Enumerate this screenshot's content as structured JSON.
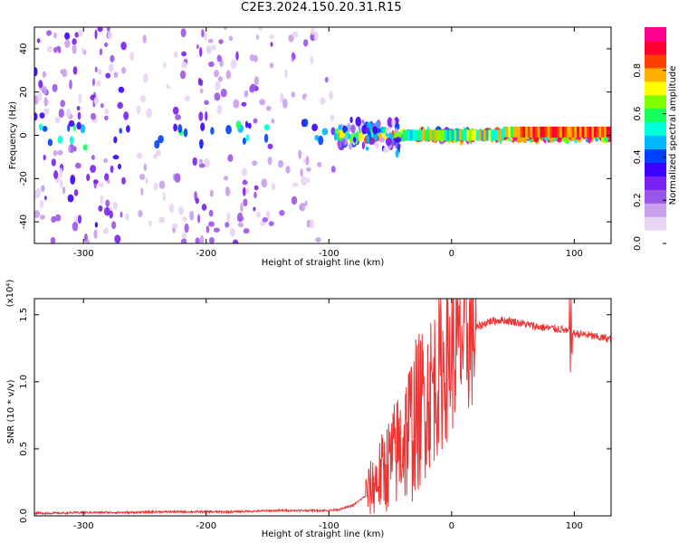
{
  "title": "C2E3.2024.150.20.31.R15",
  "chart_data": [
    {
      "type": "heatmap",
      "name": "spectrogram",
      "xlabel": "Height of straight line (km)",
      "ylabel": "Frequency (Hz)",
      "xlim": [
        -340,
        130
      ],
      "ylim": [
        -50,
        50
      ],
      "xticks": [
        -300,
        -200,
        -100,
        0,
        100
      ],
      "yticks": [
        -40,
        -20,
        0,
        20,
        40
      ],
      "colorbar": {
        "label": "Normalized spectral amplitude",
        "range": [
          0,
          1
        ],
        "ticks": [
          "0.0",
          "0.2",
          "0.4",
          "0.6",
          "0.8"
        ],
        "tick_values": [
          0,
          0.2,
          0.4,
          0.6,
          0.8
        ],
        "colors": [
          "#ffffff",
          "#e8d4f4",
          "#c9a0ec",
          "#9a56e6",
          "#7a20f0",
          "#3c00ff",
          "#0040ff",
          "#00b8ff",
          "#00ffd8",
          "#18ff60",
          "#80ff00",
          "#ffff00",
          "#ffb000",
          "#ff4000",
          "#ff0030",
          "#ff0090"
        ]
      },
      "bands": [
        {
          "x": [
            -340,
            -265
          ],
          "freq_spread": 48,
          "level": 0.22,
          "density": 0.6
        },
        {
          "x": [
            -265,
            -225
          ],
          "freq_spread": 48,
          "level": 0.12,
          "density": 0.35
        },
        {
          "x": [
            -225,
            -145
          ],
          "freq_spread": 48,
          "level": 0.2,
          "density": 0.5
        },
        {
          "x": [
            -140,
            -95
          ],
          "freq_spread": 48,
          "level": 0.15,
          "density": 0.4
        },
        {
          "x": [
            -95,
            -40
          ],
          "freq_spread": 10,
          "level": 0.32,
          "density": 0.8
        },
        {
          "x": [
            -40,
            130
          ],
          "freq_spread": 3,
          "level": 0.55,
          "density": 1.0
        }
      ]
    },
    {
      "type": "line",
      "name": "snr",
      "xlabel": "Height of straight line (km)",
      "ylabel": "SNR (10 * v/v)",
      "y_multiplier": "(x10⁴)",
      "xlim": [
        -340,
        130
      ],
      "ylim": [
        0,
        1.62
      ],
      "xticks": [
        -300,
        -200,
        -100,
        0,
        100
      ],
      "yticks": [
        0.0,
        0.5,
        1.0,
        1.5
      ],
      "ytick_labels": [
        "0.0",
        "0.5",
        "1.0",
        "1.5"
      ],
      "color": "#ee3333",
      "series": [
        {
          "x": [
            -340,
            -320,
            -300,
            -280,
            -260,
            -240,
            -220,
            -200,
            -180,
            -160,
            -140,
            -120,
            -100,
            -90,
            -80,
            -70,
            -60,
            -50,
            -40,
            -30,
            -20,
            -10,
            0,
            10,
            20,
            30,
            40,
            50,
            60,
            70,
            80,
            90,
            95,
            100,
            110,
            120,
            130
          ],
          "values": [
            0.02,
            0.02,
            0.025,
            0.025,
            0.025,
            0.03,
            0.03,
            0.03,
            0.03,
            0.035,
            0.04,
            0.04,
            0.04,
            0.05,
            0.08,
            0.15,
            0.28,
            0.4,
            0.55,
            0.72,
            0.9,
            1.05,
            1.2,
            1.32,
            1.4,
            1.45,
            1.46,
            1.45,
            1.43,
            1.41,
            1.4,
            1.39,
            1.37,
            1.36,
            1.35,
            1.33,
            1.32
          ]
        }
      ]
    }
  ]
}
